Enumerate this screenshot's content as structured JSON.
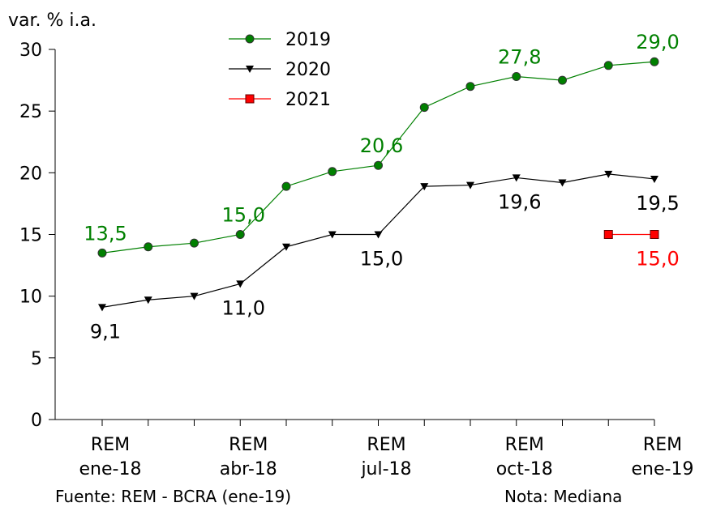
{
  "chart_data": {
    "type": "line",
    "y_label": "var. % i.a.",
    "source": "Fuente: REM - BCRA (ene-19)",
    "note": "Nota: Mediana",
    "categories": [
      "REM ene-18",
      null,
      null,
      "REM abr-18",
      null,
      null,
      "REM jul-18",
      null,
      null,
      "REM oct-18",
      null,
      null,
      "REM ene-19"
    ],
    "series": [
      {
        "name": "2019",
        "color": "#008000",
        "marker": "circle",
        "values": [
          13.5,
          14.0,
          14.3,
          15.0,
          18.9,
          20.1,
          20.6,
          25.3,
          27.0,
          27.8,
          27.5,
          28.7,
          29.0
        ],
        "value_labels": [
          "13,5",
          null,
          null,
          "15,0",
          null,
          null,
          "20,6",
          null,
          null,
          "27,8",
          null,
          null,
          "29,0"
        ]
      },
      {
        "name": "2020",
        "color": "#000000",
        "marker": "triangle-down",
        "values": [
          9.1,
          9.7,
          10.0,
          11.0,
          14.0,
          15.0,
          15.0,
          18.9,
          19.0,
          19.6,
          19.2,
          19.9,
          19.5
        ],
        "value_labels": [
          "9,1",
          null,
          null,
          "11,0",
          null,
          null,
          "15,0",
          null,
          null,
          "19,6",
          null,
          null,
          "19,5"
        ]
      },
      {
        "name": "2021",
        "color": "#ff0000",
        "marker": "square",
        "values": [
          null,
          null,
          null,
          null,
          null,
          null,
          null,
          null,
          null,
          null,
          null,
          15.0,
          15.0
        ],
        "value_labels": [
          null,
          null,
          null,
          null,
          null,
          null,
          null,
          null,
          null,
          null,
          null,
          null,
          "15,0"
        ]
      }
    ],
    "ylim": [
      0,
      30
    ],
    "yticks": [
      0,
      5,
      10,
      15,
      20,
      25,
      30
    ]
  }
}
